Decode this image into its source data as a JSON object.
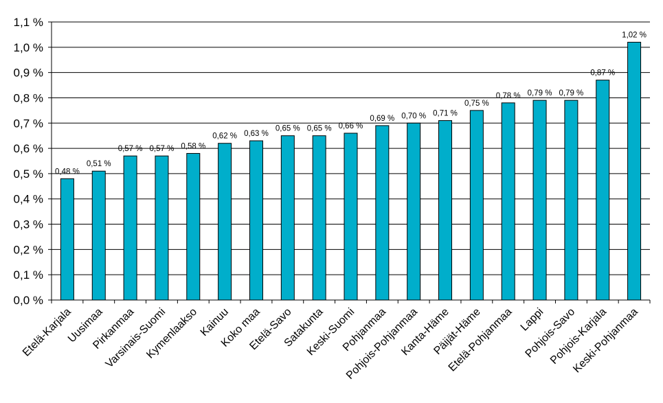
{
  "chart_data": {
    "type": "bar",
    "categories": [
      "Etelä-Karjala",
      "Uusimaa",
      "Pirkanmaa",
      "Varsinais-Suomi",
      "Kymenlaakso",
      "Kainuu",
      "Koko maa",
      "Etelä-Savo",
      "Satakunta",
      "Keski-Suomi",
      "Pohjanmaa",
      "Pohjois-Pohjanmaa",
      "Kanta-Häme",
      "Päijät-Häme",
      "Etelä-Pohjanmaa",
      "Lappi",
      "Pohjois-Savo",
      "Pohjois-Karjala",
      "Keski-Pohjanmaa"
    ],
    "values": [
      0.48,
      0.51,
      0.57,
      0.57,
      0.58,
      0.62,
      0.63,
      0.65,
      0.65,
      0.66,
      0.69,
      0.7,
      0.71,
      0.75,
      0.78,
      0.79,
      0.79,
      0.87,
      1.02
    ],
    "data_labels": [
      "0,48 %",
      "0,51 %",
      "0,57 %",
      "0,57 %",
      "0,58 %",
      "0,62 %",
      "0,63 %",
      "0,65 %",
      "0,65 %",
      "0,66 %",
      "0,69 %",
      "0,70 %",
      "0,71 %",
      "0,75 %",
      "0,78 %",
      "0,79 %",
      "0,79 %",
      "0,87 %",
      "1,02 %"
    ],
    "y_ticks": [
      0.0,
      0.1,
      0.2,
      0.3,
      0.4,
      0.5,
      0.6,
      0.7,
      0.8,
      0.9,
      1.0,
      1.1
    ],
    "y_tick_labels": [
      "0,0 %",
      "0,1 %",
      "0,2 %",
      "0,3 %",
      "0,4 %",
      "0,5 %",
      "0,6 %",
      "0,7 %",
      "0,8 %",
      "0,9 %",
      "1,0 %",
      "1,1 %"
    ],
    "ylim": [
      0,
      1.1
    ],
    "title": "",
    "xlabel": "",
    "ylabel": "",
    "grid": true,
    "legend": "none",
    "bar_color": "#00AECB",
    "bar_edge_color": "#000000"
  }
}
